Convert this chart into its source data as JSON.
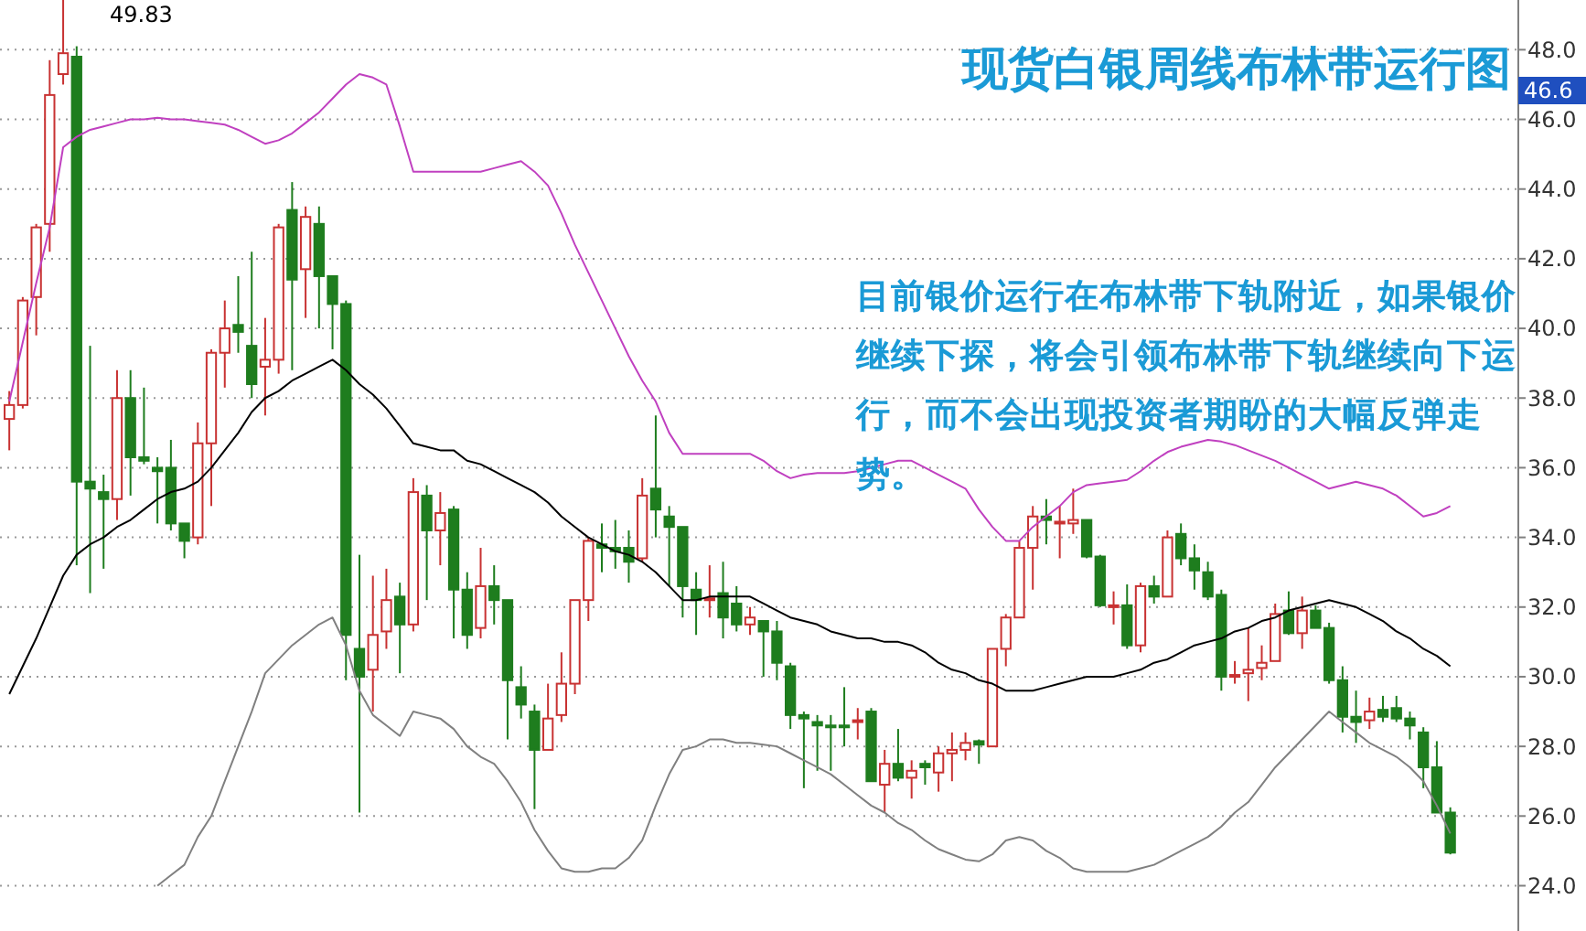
{
  "chart_data": {
    "type": "candlestick",
    "title": "现货白银周线布林带运行图",
    "categories": [
      null,
      null,
      null,
      null,
      null,
      null,
      null,
      null,
      null,
      null,
      null,
      null,
      null,
      null,
      null,
      null,
      null,
      null,
      null,
      null,
      null,
      null,
      null,
      null,
      null,
      null,
      null,
      null,
      null,
      null,
      null,
      null,
      null,
      null,
      null,
      null,
      null,
      null,
      null,
      null,
      null,
      null,
      null,
      null,
      null,
      null,
      null,
      null,
      null,
      null,
      null,
      null,
      null,
      null,
      null,
      null,
      null,
      null,
      null,
      null,
      null,
      null,
      null,
      null,
      null,
      null,
      null,
      null,
      null,
      null,
      null,
      null,
      null,
      null,
      null,
      null,
      null,
      null,
      null,
      null,
      null,
      null,
      null,
      null,
      null,
      null,
      null,
      null,
      null,
      null,
      null,
      null,
      null,
      null,
      null,
      null,
      null,
      null,
      null,
      null,
      null,
      null,
      null,
      null,
      null,
      null,
      null,
      null
    ],
    "ohlc": [
      [
        37.4,
        38.2,
        36.5,
        37.8
      ],
      [
        37.8,
        40.9,
        37.7,
        40.8
      ],
      [
        40.9,
        43.0,
        39.8,
        42.9
      ],
      [
        43.0,
        47.7,
        42.2,
        46.7
      ],
      [
        47.3,
        49.83,
        47.0,
        47.9
      ],
      [
        47.8,
        48.1,
        33.2,
        35.6
      ],
      [
        35.6,
        39.5,
        32.4,
        35.4
      ],
      [
        35.3,
        35.8,
        33.1,
        35.1
      ],
      [
        35.1,
        38.8,
        34.5,
        38.0
      ],
      [
        38.0,
        38.8,
        35.2,
        36.3
      ],
      [
        36.3,
        38.3,
        36.1,
        36.2
      ],
      [
        36.0,
        36.3,
        34.4,
        35.9
      ],
      [
        36.0,
        36.8,
        34.2,
        34.4
      ],
      [
        34.4,
        34.4,
        33.4,
        33.9
      ],
      [
        34.0,
        37.3,
        33.8,
        36.7
      ],
      [
        36.7,
        39.4,
        34.9,
        39.3
      ],
      [
        39.3,
        40.8,
        38.3,
        40.0
      ],
      [
        40.1,
        41.5,
        39.3,
        39.9
      ],
      [
        39.5,
        42.2,
        38.0,
        38.4
      ],
      [
        38.9,
        40.3,
        37.5,
        39.1
      ],
      [
        39.1,
        43.0,
        38.7,
        42.9
      ],
      [
        43.4,
        44.2,
        38.8,
        41.4
      ],
      [
        41.7,
        43.5,
        40.3,
        43.2
      ],
      [
        43.0,
        43.5,
        40.0,
        41.5
      ],
      [
        41.5,
        41.5,
        39.4,
        40.7
      ],
      [
        40.7,
        40.8,
        29.9,
        31.2
      ],
      [
        30.8,
        33.5,
        26.1,
        30.0
      ],
      [
        30.2,
        32.9,
        29.0,
        31.2
      ],
      [
        31.3,
        33.1,
        30.8,
        32.2
      ],
      [
        32.3,
        32.7,
        30.1,
        31.5
      ],
      [
        31.5,
        35.7,
        31.3,
        35.3
      ],
      [
        35.2,
        35.5,
        32.2,
        34.2
      ],
      [
        34.2,
        35.3,
        33.2,
        34.7
      ],
      [
        34.8,
        34.9,
        31.1,
        32.5
      ],
      [
        32.5,
        33.0,
        30.8,
        31.2
      ],
      [
        31.4,
        33.7,
        31.1,
        32.6
      ],
      [
        32.6,
        33.2,
        31.5,
        32.2
      ],
      [
        32.2,
        32.2,
        28.2,
        29.9
      ],
      [
        29.7,
        30.3,
        28.8,
        29.2
      ],
      [
        29.0,
        29.2,
        26.2,
        27.9
      ],
      [
        27.9,
        29.8,
        27.9,
        28.8
      ],
      [
        28.9,
        30.7,
        28.7,
        29.8
      ],
      [
        29.8,
        32.2,
        29.5,
        32.2
      ],
      [
        32.2,
        34.0,
        31.6,
        33.9
      ],
      [
        33.8,
        34.4,
        33.0,
        33.7
      ],
      [
        33.7,
        34.5,
        33.1,
        33.6
      ],
      [
        33.7,
        34.2,
        32.7,
        33.3
      ],
      [
        33.4,
        35.7,
        33.3,
        35.2
      ],
      [
        35.4,
        37.5,
        34.0,
        34.8
      ],
      [
        34.6,
        34.9,
        32.6,
        34.3
      ],
      [
        34.3,
        34.3,
        31.7,
        32.6
      ],
      [
        32.5,
        33.0,
        31.2,
        32.2
      ],
      [
        32.2,
        33.2,
        31.7,
        32.25
      ],
      [
        32.4,
        33.3,
        31.1,
        31.7
      ],
      [
        32.1,
        32.6,
        31.3,
        31.5
      ],
      [
        31.5,
        32.0,
        31.2,
        31.7
      ],
      [
        31.6,
        31.6,
        30.0,
        31.3
      ],
      [
        31.3,
        31.6,
        29.9,
        30.4
      ],
      [
        30.3,
        30.4,
        28.5,
        28.9
      ],
      [
        28.9,
        29.0,
        26.8,
        28.8
      ],
      [
        28.7,
        28.9,
        27.3,
        28.6
      ],
      [
        28.6,
        28.9,
        27.3,
        28.55
      ],
      [
        28.6,
        29.7,
        28.0,
        28.55
      ],
      [
        28.7,
        29.1,
        28.2,
        28.75
      ],
      [
        29.0,
        29.1,
        27.0,
        27.0
      ],
      [
        26.9,
        27.9,
        26.1,
        27.5
      ],
      [
        27.5,
        28.5,
        27.0,
        27.1
      ],
      [
        27.1,
        27.6,
        26.5,
        27.3
      ],
      [
        27.5,
        27.6,
        26.9,
        27.4
      ],
      [
        27.25,
        28.0,
        26.7,
        27.8
      ],
      [
        27.8,
        28.4,
        27.0,
        27.9
      ],
      [
        27.9,
        28.4,
        27.6,
        28.1
      ],
      [
        28.15,
        28.2,
        27.5,
        28.05
      ],
      [
        28.0,
        30.8,
        28.0,
        30.8
      ],
      [
        30.8,
        31.8,
        30.3,
        31.7
      ],
      [
        31.7,
        33.9,
        31.7,
        33.7
      ],
      [
        33.7,
        34.9,
        32.5,
        34.6
      ],
      [
        34.6,
        35.1,
        33.8,
        34.5
      ],
      [
        34.4,
        34.9,
        33.4,
        34.45
      ],
      [
        34.4,
        35.4,
        34.1,
        34.5
      ],
      [
        34.5,
        34.5,
        33.4,
        33.45
      ],
      [
        33.45,
        33.5,
        32.0,
        32.05
      ],
      [
        32.0,
        32.45,
        31.5,
        32.05
      ],
      [
        32.05,
        32.65,
        30.8,
        30.9
      ],
      [
        30.9,
        32.7,
        30.7,
        32.6
      ],
      [
        32.6,
        32.9,
        32.1,
        32.3
      ],
      [
        32.3,
        34.2,
        32.3,
        34.0
      ],
      [
        34.1,
        34.4,
        33.2,
        33.4
      ],
      [
        33.4,
        33.8,
        32.5,
        33.05
      ],
      [
        33.0,
        33.3,
        32.2,
        32.3
      ],
      [
        32.35,
        32.5,
        29.6,
        30.0
      ],
      [
        30.0,
        30.45,
        29.8,
        30.05
      ],
      [
        30.1,
        31.4,
        29.3,
        30.2
      ],
      [
        30.25,
        30.9,
        29.9,
        30.4
      ],
      [
        30.45,
        32.1,
        30.45,
        31.8
      ],
      [
        31.9,
        32.45,
        31.2,
        31.25
      ],
      [
        31.25,
        32.3,
        30.8,
        31.9
      ],
      [
        31.9,
        32.05,
        31.4,
        31.4
      ],
      [
        31.4,
        31.55,
        29.8,
        29.9
      ],
      [
        29.9,
        30.3,
        28.4,
        28.85
      ],
      [
        28.85,
        29.6,
        28.1,
        28.7
      ],
      [
        28.75,
        29.4,
        28.5,
        29.0
      ],
      [
        29.05,
        29.45,
        28.7,
        28.85
      ],
      [
        29.1,
        29.45,
        28.7,
        28.8
      ],
      [
        28.8,
        29.0,
        28.2,
        28.6
      ],
      [
        28.4,
        28.55,
        26.8,
        27.4
      ],
      [
        27.4,
        28.15,
        26.1,
        26.1
      ],
      [
        26.1,
        26.25,
        24.9,
        24.95
      ]
    ],
    "colors": [
      "#c83232",
      "#c83232",
      "#c83232",
      "#c83232",
      "#c83232",
      "#1e7d1e",
      "#1e7d1e",
      "#1e7d1e",
      "#c83232",
      "#1e7d1e",
      "#1e7d1e",
      "#1e7d1e",
      "#1e7d1e",
      "#1e7d1e",
      "#c83232",
      "#c83232",
      "#c83232",
      "#1e7d1e",
      "#1e7d1e",
      "#c83232",
      "#c83232",
      "#1e7d1e",
      "#c83232",
      "#1e7d1e",
      "#1e7d1e",
      "#1e7d1e",
      "#1e7d1e",
      "#c83232",
      "#c83232",
      "#1e7d1e",
      "#c83232",
      "#1e7d1e",
      "#c83232",
      "#1e7d1e",
      "#1e7d1e",
      "#c83232",
      "#1e7d1e",
      "#1e7d1e",
      "#1e7d1e",
      "#1e7d1e",
      "#c83232",
      "#c83232",
      "#c83232",
      "#c83232",
      "#1e7d1e",
      "#1e7d1e",
      "#1e7d1e",
      "#c83232",
      "#1e7d1e",
      "#1e7d1e",
      "#1e7d1e",
      "#1e7d1e",
      "#c83232",
      "#1e7d1e",
      "#1e7d1e",
      "#c83232",
      "#1e7d1e",
      "#1e7d1e",
      "#1e7d1e",
      "#1e7d1e",
      "#1e7d1e",
      "#1e7d1e",
      "#1e7d1e",
      "#c83232",
      "#1e7d1e",
      "#c83232",
      "#1e7d1e",
      "#c83232",
      "#1e7d1e",
      "#c83232",
      "#c83232",
      "#c83232",
      "#1e7d1e",
      "#c83232",
      "#c83232",
      "#c83232",
      "#c83232",
      "#1e7d1e",
      "#c83232",
      "#c83232",
      "#1e7d1e",
      "#1e7d1e",
      "#c83232",
      "#1e7d1e",
      "#c83232",
      "#1e7d1e",
      "#c83232",
      "#1e7d1e",
      "#1e7d1e",
      "#1e7d1e",
      "#1e7d1e",
      "#c83232",
      "#c83232",
      "#c83232",
      "#c83232",
      "#1e7d1e",
      "#c83232",
      "#1e7d1e",
      "#1e7d1e",
      "#1e7d1e",
      "#1e7d1e",
      "#c83232",
      "#1e7d1e",
      "#1e7d1e",
      "#1e7d1e",
      "#1e7d1e",
      "#1e7d1e",
      "#1e7d1e"
    ],
    "series": [
      {
        "type": "line",
        "color": "#c040c0",
        "values": [
          37.9,
          39.6,
          41.3,
          42.9,
          45.2,
          45.5,
          45.7,
          45.8,
          45.9,
          46.0,
          46.0,
          46.05,
          46.0,
          46.0,
          45.95,
          45.9,
          45.85,
          45.7,
          45.5,
          45.3,
          45.4,
          45.6,
          45.9,
          46.2,
          46.6,
          47.0,
          47.3,
          47.2,
          47.0,
          45.8,
          44.5,
          44.5,
          44.5,
          44.5,
          44.5,
          44.5,
          44.6,
          44.7,
          44.8,
          44.5,
          44.1,
          43.3,
          42.4,
          41.6,
          40.8,
          40.0,
          39.2,
          38.5,
          37.9,
          37.0,
          36.4,
          36.4,
          36.4,
          36.4,
          36.4,
          36.4,
          36.2,
          35.9,
          35.7,
          35.8,
          35.85,
          35.85,
          35.85,
          35.9,
          36.0,
          36.1,
          36.2,
          36.2,
          36.0,
          35.8,
          35.6,
          35.4,
          34.8,
          34.3,
          33.9,
          33.9,
          34.3,
          34.6,
          34.9,
          35.3,
          35.5,
          35.55,
          35.6,
          35.65,
          35.9,
          36.2,
          36.45,
          36.6,
          36.7,
          36.8,
          36.75,
          36.65,
          36.5,
          36.35,
          36.2,
          36.0,
          35.8,
          35.6,
          35.4,
          35.5,
          35.6,
          35.5,
          35.4,
          35.2,
          34.9,
          34.6,
          34.7,
          34.9
        ]
      },
      {
        "type": "line",
        "color": "#000000",
        "values": [
          29.5,
          30.3,
          31.1,
          32.0,
          32.9,
          33.5,
          33.8,
          34.0,
          34.3,
          34.5,
          34.8,
          35.1,
          35.3,
          35.4,
          35.6,
          36.0,
          36.5,
          37.0,
          37.6,
          38.0,
          38.2,
          38.5,
          38.7,
          38.9,
          39.1,
          38.8,
          38.4,
          38.1,
          37.7,
          37.2,
          36.7,
          36.6,
          36.5,
          36.5,
          36.2,
          36.1,
          35.9,
          35.7,
          35.5,
          35.3,
          35.0,
          34.6,
          34.3,
          34.0,
          33.8,
          33.6,
          33.5,
          33.3,
          33.0,
          32.6,
          32.2,
          32.2,
          32.3,
          32.3,
          32.3,
          32.3,
          32.1,
          31.9,
          31.7,
          31.6,
          31.5,
          31.3,
          31.2,
          31.1,
          31.1,
          31.0,
          31.0,
          30.9,
          30.7,
          30.4,
          30.2,
          30.1,
          29.9,
          29.8,
          29.6,
          29.6,
          29.6,
          29.7,
          29.8,
          29.9,
          30.0,
          30.0,
          30.0,
          30.1,
          30.2,
          30.4,
          30.5,
          30.7,
          30.9,
          31.0,
          31.1,
          31.3,
          31.4,
          31.6,
          31.7,
          31.9,
          32.0,
          32.1,
          32.2,
          32.1,
          32.0,
          31.8,
          31.6,
          31.3,
          31.1,
          30.8,
          30.6,
          30.3
        ]
      },
      {
        "type": "line",
        "color": "#808080",
        "values": [
          null,
          null,
          null,
          null,
          null,
          null,
          null,
          null,
          null,
          null,
          null,
          24.0,
          24.3,
          24.6,
          25.4,
          26.0,
          27.0,
          28.0,
          29.0,
          30.1,
          30.5,
          30.9,
          31.2,
          31.5,
          31.7,
          30.9,
          29.6,
          28.9,
          28.6,
          28.3,
          29.0,
          28.9,
          28.8,
          28.5,
          28.0,
          27.7,
          27.5,
          27.0,
          26.4,
          25.6,
          25.0,
          24.5,
          24.4,
          24.4,
          24.5,
          24.5,
          24.8,
          25.3,
          26.3,
          27.2,
          27.9,
          28.0,
          28.2,
          28.2,
          28.1,
          28.1,
          28.05,
          28.0,
          27.8,
          27.6,
          27.4,
          27.2,
          26.9,
          26.6,
          26.3,
          26.1,
          25.8,
          25.6,
          25.3,
          25.05,
          24.9,
          24.75,
          24.7,
          24.9,
          25.3,
          25.4,
          25.3,
          25.0,
          24.8,
          24.5,
          24.4,
          24.4,
          24.4,
          24.4,
          24.5,
          24.6,
          24.8,
          25.0,
          25.2,
          25.4,
          25.7,
          26.1,
          26.4,
          26.9,
          27.4,
          27.8,
          28.2,
          28.6,
          29.0,
          28.7,
          28.4,
          28.1,
          27.9,
          27.7,
          27.4,
          27.0,
          26.3,
          25.5
        ]
      }
    ],
    "ylim": [
      22.7,
      49.9
    ],
    "yticks": [
      {
        "value": 24,
        "label": "24.0"
      },
      {
        "value": 26,
        "label": "26.0"
      },
      {
        "value": 28,
        "label": "28.0"
      },
      {
        "value": 30,
        "label": "30.0"
      },
      {
        "value": 32,
        "label": "32.0"
      },
      {
        "value": 34,
        "label": "34.0"
      },
      {
        "value": 36,
        "label": "36.0"
      },
      {
        "value": 38,
        "label": "38.0"
      },
      {
        "value": 40,
        "label": "40.0"
      },
      {
        "value": 42,
        "label": "42.0"
      },
      {
        "value": 44,
        "label": "44.0"
      },
      {
        "value": 46,
        "label": "46.0"
      },
      {
        "value": 48,
        "label": "48.0"
      }
    ],
    "grid": "y",
    "tick_labels": "y",
    "annotations": [
      "49.83",
      "46.6",
      "目前银价运行在布林带下轨附近，如果银价继续下探，将会引领布林带下轨继续向下运行，而不会出现投资者期盼的大幅反弹走势。"
    ]
  }
}
